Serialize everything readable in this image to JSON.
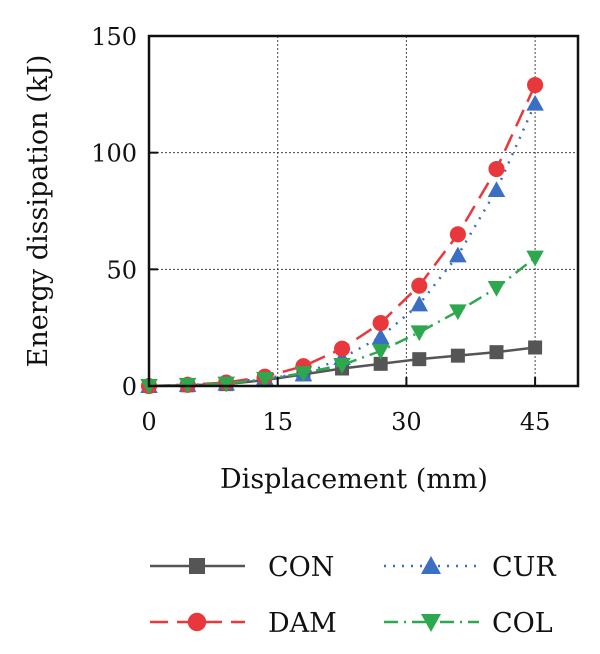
{
  "chart_data": {
    "type": "line",
    "title": "",
    "xlabel": "Displacement (mm)",
    "ylabel": "Energy dissipation (kJ)",
    "xlim": [
      0,
      50
    ],
    "ylim": [
      0,
      150
    ],
    "xticks": [
      0,
      15,
      30,
      45
    ],
    "yticks": [
      0,
      50,
      100,
      150
    ],
    "grid": true,
    "legend_position": "bottom",
    "x": [
      0,
      4.5,
      9,
      13.5,
      18,
      22.5,
      27,
      31.5,
      36,
      40.5,
      45
    ],
    "series": [
      {
        "name": "CON",
        "color": "#555555",
        "marker": "square",
        "line": "solid",
        "values": [
          0,
          0.3,
          0.8,
          2.5,
          5,
          7.5,
          9.5,
          11.5,
          13,
          14.5,
          16.5
        ]
      },
      {
        "name": "CUR",
        "color": "#3a6fc4",
        "marker": "triangle-up",
        "line": "dotted",
        "values": [
          0,
          0.5,
          1,
          3.5,
          5,
          12,
          21,
          35,
          56,
          84,
          121
        ]
      },
      {
        "name": "DAM",
        "color": "#e8383b",
        "marker": "circle",
        "line": "dashed",
        "values": [
          0,
          0.5,
          1.5,
          4,
          8.5,
          16,
          27,
          43,
          65,
          93,
          129
        ]
      },
      {
        "name": "COL",
        "color": "#2ea84f",
        "marker": "triangle-down",
        "line": "dashdot",
        "values": [
          0,
          0.5,
          1,
          3,
          5.5,
          9,
          15,
          23,
          32,
          42,
          55
        ]
      }
    ]
  }
}
